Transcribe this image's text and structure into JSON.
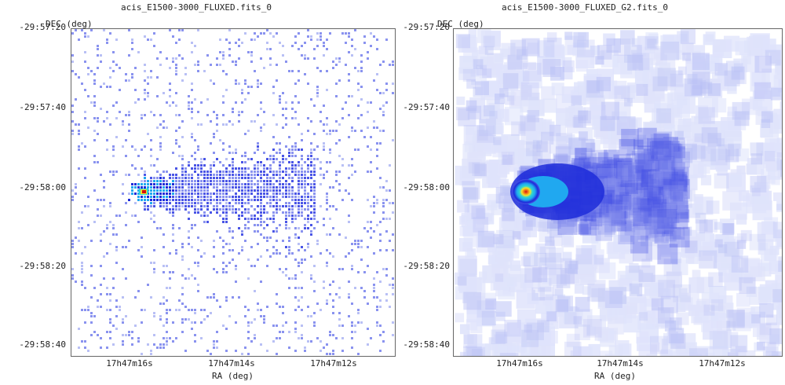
{
  "panels": [
    {
      "title": "acis_E1500-3000_FLUXED.fits_0",
      "ylabel": "DEC (deg)",
      "xlabel": "RA (deg)",
      "style": "binned",
      "yticks": [
        "-29:57:20",
        "-29:57:40",
        "-29:58:00",
        "-29:58:20",
        "-29:58:40"
      ],
      "xticks": [
        "17h47m16s",
        "17h47m14s",
        "17h47m12s"
      ]
    },
    {
      "title": "acis_E1500-3000_FLUXED_G2.fits_0",
      "ylabel": "DEC (deg)",
      "xlabel": "RA (deg)",
      "style": "smoothed",
      "yticks": [
        "-29:57:20",
        "-29:57:40",
        "-29:58:00",
        "-29:58:20",
        "-29:58:40"
      ],
      "xticks": [
        "17h47m16s",
        "17h47m14s",
        "17h47m12s"
      ]
    }
  ],
  "colormap": [
    "#dfe3fb",
    "#b9c0f5",
    "#8a93ef",
    "#4a55e6",
    "#1d2bd9",
    "#20a8f0",
    "#2fd6d0",
    "#f5e12a",
    "#f07a18",
    "#d31010"
  ]
}
